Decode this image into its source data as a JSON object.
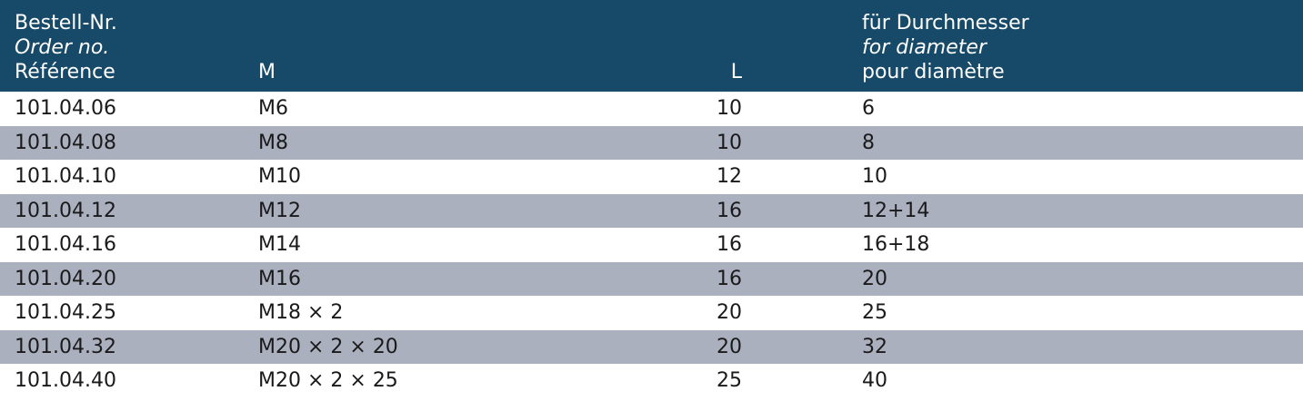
{
  "header": {
    "order_de": "Bestell-Nr.",
    "order_en": "Order no.",
    "order_fr": "Référence",
    "m_label": "M",
    "l_label": "L",
    "dia_de": "für Durchmesser",
    "dia_en": "for diameter",
    "dia_fr": "pour diamètre"
  },
  "rows": [
    {
      "order": "101.04.06",
      "m": "M6",
      "l": "10",
      "dia": "6"
    },
    {
      "order": "101.04.08",
      "m": "M8",
      "l": "10",
      "dia": "8"
    },
    {
      "order": "101.04.10",
      "m": "M10",
      "l": "12",
      "dia": "10"
    },
    {
      "order": "101.04.12",
      "m": "M12",
      "l": "16",
      "dia": "12+14"
    },
    {
      "order": "101.04.16",
      "m": "M14",
      "l": "16",
      "dia": "16+18"
    },
    {
      "order": "101.04.20",
      "m": "M16",
      "l": "16",
      "dia": "20"
    },
    {
      "order": "101.04.25",
      "m": "M18 × 2",
      "l": "20",
      "dia": "25"
    },
    {
      "order": "101.04.32",
      "m": "M20 × 2 × 20",
      "l": "20",
      "dia": "32"
    },
    {
      "order": "101.04.40",
      "m": "M20 × 2 × 25",
      "l": "25",
      "dia": "40"
    }
  ],
  "colors": {
    "header_bg": "#174a68",
    "alt_row_bg": "#abb0bf"
  }
}
